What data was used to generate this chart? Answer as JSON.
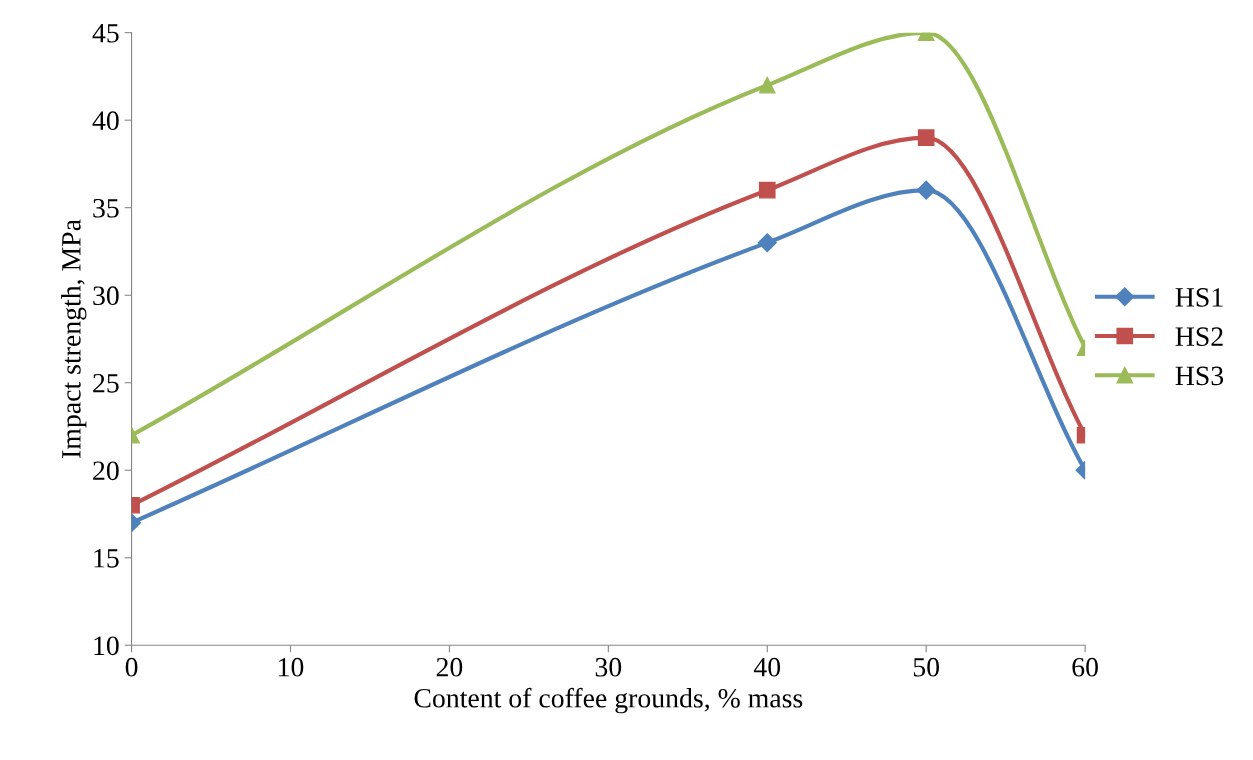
{
  "chart_data": {
    "type": "line",
    "xlabel": "Content of coffee grounds, % mass",
    "ylabel": "Impact strength, MPa",
    "x": [
      0,
      40,
      50,
      60
    ],
    "series": [
      {
        "name": "HS1",
        "color": "#4f81bd",
        "marker": "diamond",
        "values": [
          17,
          33,
          36,
          20
        ]
      },
      {
        "name": "HS2",
        "color": "#c0504d",
        "marker": "square",
        "values": [
          18,
          36,
          39,
          22
        ]
      },
      {
        "name": "HS3",
        "color": "#9bbb59",
        "marker": "triangle",
        "values": [
          22,
          42,
          45,
          27
        ]
      }
    ],
    "xlim": [
      0,
      60
    ],
    "xticks": [
      0,
      10,
      20,
      30,
      40,
      50,
      60
    ],
    "ylim": [
      10,
      45
    ],
    "yticks": [
      10,
      15,
      20,
      25,
      30,
      35,
      40,
      45
    ],
    "grid": false,
    "legend": "right",
    "line_style": "solid"
  }
}
